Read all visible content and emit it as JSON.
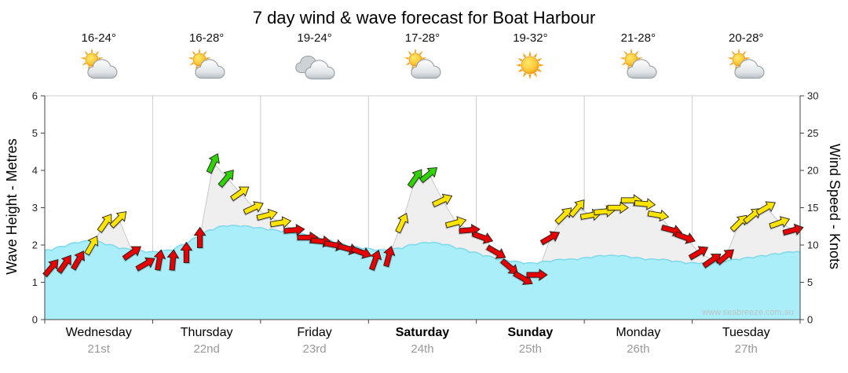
{
  "title": "7 day wind & wave forecast for Boat Harbour",
  "watermark": "www.seabreeze.com.au",
  "axes": {
    "left_label": "Wave Height - Metres",
    "right_label": "Wind Speed - Knots",
    "left_ticks": [
      "0",
      "1",
      "2",
      "3",
      "4",
      "5",
      "6"
    ],
    "right_ticks": [
      "0",
      "5",
      "10",
      "15",
      "20",
      "25",
      "30"
    ],
    "wave_axis_range": [
      0,
      6
    ],
    "wind_axis_range": [
      0,
      30
    ]
  },
  "days": [
    {
      "name": "Wednesday",
      "date": "21st",
      "temp": "16-24°",
      "icon": "sun-cloud",
      "bold": false
    },
    {
      "name": "Thursday",
      "date": "22nd",
      "temp": "16-28°",
      "icon": "sun-cloud",
      "bold": false
    },
    {
      "name": "Friday",
      "date": "23rd",
      "temp": "19-24°",
      "icon": "cloud",
      "bold": false
    },
    {
      "name": "Saturday",
      "date": "24th",
      "temp": "17-28°",
      "icon": "sun-cloud",
      "bold": true
    },
    {
      "name": "Sunday",
      "date": "25th",
      "temp": "19-32°",
      "icon": "sun",
      "bold": true
    },
    {
      "name": "Monday",
      "date": "26th",
      "temp": "21-28°",
      "icon": "sun-cloud",
      "bold": false
    },
    {
      "name": "Tuesday",
      "date": "27th",
      "temp": "20-28°",
      "icon": "sun-cloud",
      "bold": false
    }
  ],
  "colors": {
    "wind_red": "#e60000",
    "wind_yellow": "#ffe400",
    "wind_green": "#2fd400",
    "wave_fill": "#aaeef9",
    "wave_line": "#7cd9ea",
    "wind_silhouette_fill": "#efefef",
    "wind_silhouette_line": "#c9c9c9",
    "grid_line": "#cccccc",
    "axis_line": "#444444",
    "watermark": "#b9c6c6"
  },
  "chart_data": {
    "type": "area",
    "title": "7 day wind & wave forecast for Boat Harbour",
    "points_per_day": 8,
    "categories": [
      "Wednesday 21st",
      "Thursday 22nd",
      "Friday 23rd",
      "Saturday 24th",
      "Sunday 25th",
      "Monday 26th",
      "Tuesday 27th"
    ],
    "ylabel_left": "Wave Height - Metres",
    "ylabel_right": "Wind Speed - Knots",
    "ylim_wave": [
      0,
      6
    ],
    "ylim_wind": [
      0,
      30
    ],
    "series": [
      {
        "name": "Wave Height (m)",
        "values": [
          1.85,
          1.95,
          2.05,
          2.1,
          2.0,
          1.9,
          1.85,
          1.8,
          1.8,
          1.85,
          2.0,
          2.2,
          2.4,
          2.5,
          2.5,
          2.45,
          2.4,
          2.35,
          2.3,
          2.25,
          2.15,
          2.05,
          1.95,
          1.9,
          1.85,
          1.85,
          1.9,
          2.0,
          2.05,
          2.0,
          1.9,
          1.8,
          1.7,
          1.6,
          1.55,
          1.5,
          1.5,
          1.55,
          1.6,
          1.6,
          1.65,
          1.7,
          1.7,
          1.65,
          1.6,
          1.6,
          1.55,
          1.5,
          1.5,
          1.5,
          1.55,
          1.6,
          1.65,
          1.7,
          1.75,
          1.8
        ]
      },
      {
        "name": "Wind Speed (knots)",
        "values": [
          7,
          7.5,
          8,
          10,
          13,
          13.5,
          9,
          7.5,
          8,
          8,
          9,
          11,
          21,
          19,
          17,
          15,
          14,
          13,
          12,
          11,
          10.5,
          10,
          9.5,
          9,
          8,
          8.5,
          13,
          19,
          19.5,
          16,
          13,
          12,
          11,
          9,
          7,
          5.5,
          6,
          11,
          14,
          15,
          14,
          14.5,
          15,
          16,
          15.5,
          14,
          12,
          11,
          9,
          8,
          8.5,
          13,
          14,
          15,
          13,
          12
        ]
      }
    ],
    "wind_dir_deg": [
      40,
      35,
      30,
      30,
      35,
      45,
      55,
      60,
      10,
      5,
      0,
      0,
      25,
      40,
      55,
      65,
      75,
      80,
      85,
      90,
      95,
      100,
      105,
      110,
      20,
      15,
      25,
      35,
      50,
      65,
      75,
      85,
      110,
      120,
      130,
      120,
      90,
      60,
      45,
      40,
      80,
      85,
      90,
      90,
      95,
      100,
      105,
      110,
      60,
      55,
      50,
      45,
      50,
      60,
      70,
      75
    ],
    "wind_color": [
      "red",
      "red",
      "red",
      "yellow",
      "yellow",
      "yellow",
      "red",
      "red",
      "red",
      "red",
      "red",
      "red",
      "green",
      "green",
      "yellow",
      "yellow",
      "yellow",
      "yellow",
      "red",
      "red",
      "red",
      "red",
      "red",
      "red",
      "red",
      "red",
      "yellow",
      "green",
      "green",
      "yellow",
      "yellow",
      "red",
      "red",
      "red",
      "red",
      "red",
      "red",
      "red",
      "yellow",
      "yellow",
      "yellow",
      "yellow",
      "yellow",
      "yellow",
      "yellow",
      "yellow",
      "red",
      "red",
      "red",
      "red",
      "red",
      "yellow",
      "yellow",
      "yellow",
      "yellow",
      "red"
    ]
  }
}
